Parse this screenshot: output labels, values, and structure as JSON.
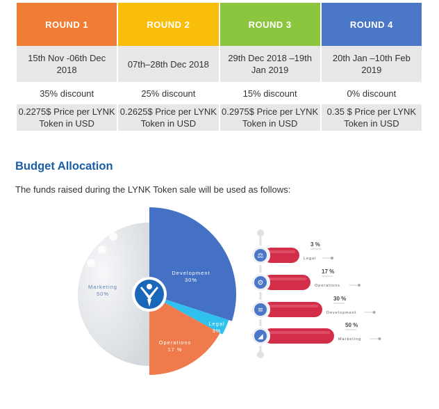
{
  "rounds": [
    {
      "label": "ROUND 1",
      "color": "#f07d35",
      "dates": "15th Nov -06th Dec 2018",
      "discount": "35% discount",
      "price": "0.2275$ Price per LYNK Token in USD"
    },
    {
      "label": "ROUND 2",
      "color": "#f9bd0c",
      "dates": "07th–28th Dec 2018",
      "discount": "25% discount",
      "price": "0.2625$ Price per LYNK Token in USD"
    },
    {
      "label": "ROUND 3",
      "color": "#8cc63f",
      "dates": "29th Dec 2018 –19th Jan 2019",
      "discount": "15% discount",
      "price": "0.2975$ Price per LYNK Token in USD"
    },
    {
      "label": "ROUND 4",
      "color": "#4a77c7",
      "dates": "20th Jan –10th Feb 2019",
      "discount": "0% discount",
      "price": "0.35 $ Price per LYNK Token in USD"
    }
  ],
  "budget": {
    "title": "Budget Allocation",
    "subtitle": "The funds raised during the LYNK Token sale will be used as follows:"
  },
  "chart_data": {
    "type": "pie",
    "slices": [
      {
        "name": "Marketing",
        "value": 50,
        "label": "50%",
        "color": "#e3e6ea"
      },
      {
        "name": "Development",
        "value": 30,
        "label": "30%",
        "color": "#4471c4"
      },
      {
        "name": "Legal",
        "value": 3,
        "label": "3%",
        "color": "#2fc0ee"
      },
      {
        "name": "Operations",
        "value": 17,
        "label": "17 %",
        "color": "#ef7b4d"
      }
    ],
    "bars": [
      {
        "name": "Legal",
        "value": 3,
        "pct": "3 %",
        "icon": "scales-icon"
      },
      {
        "name": "Operations",
        "value": 17,
        "pct": "17 %",
        "icon": "gear-icon"
      },
      {
        "name": "Development",
        "value": 30,
        "pct": "30 %",
        "icon": "coins-icon"
      },
      {
        "name": "Marketing",
        "value": 50,
        "pct": "50 %",
        "icon": "megaphone-icon"
      }
    ],
    "bar_color": "#d22e4a"
  }
}
